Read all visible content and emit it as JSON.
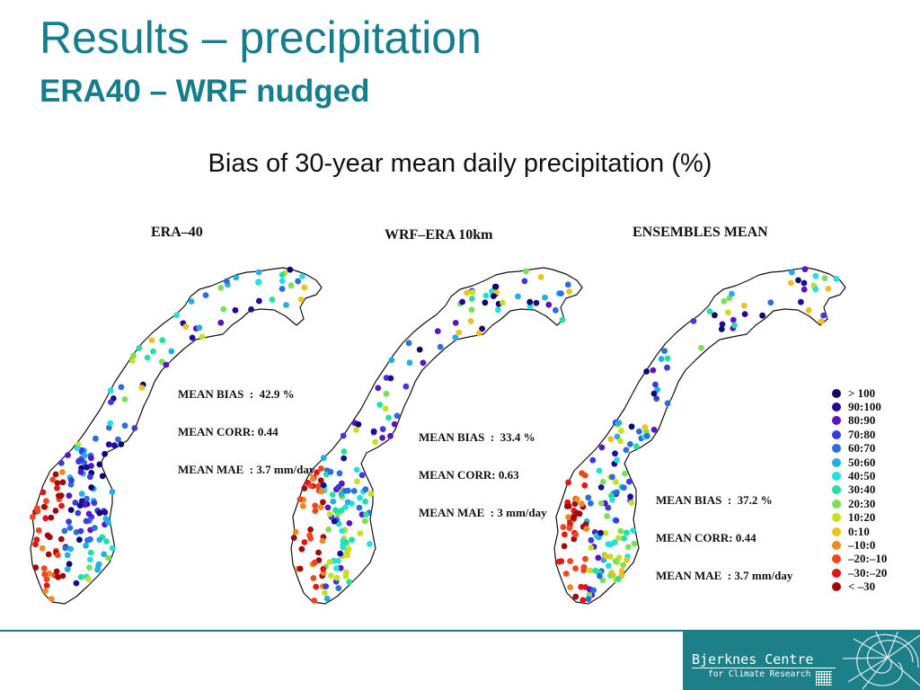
{
  "slide": {
    "title": "Results – precipitation",
    "subtitle": "ERA40 – WRF nudged",
    "heading": "Bias of 30-year mean daily precipitation (%)"
  },
  "panels": [
    {
      "title": "ERA–40",
      "stats": [
        "MEAN BIAS  :  42.9 %",
        "MEAN CORR: 0.44",
        "MEAN MAE  : 3.7 mm/day"
      ]
    },
    {
      "title": "WRF–ERA 10km",
      "stats": [
        "MEAN BIAS  :  33.4 %",
        "MEAN CORR: 0.63",
        "MEAN MAE  : 3 mm/day"
      ]
    },
    {
      "title": "ENSEMBLES MEAN",
      "stats": [
        "MEAN BIAS  :  37.2 %",
        "MEAN CORR: 0.44",
        "MEAN MAE  : 3.7 mm/day"
      ]
    }
  ],
  "legend": [
    {
      "label": "> 100",
      "color": "#0a0a6e"
    },
    {
      "label": "90:100",
      "color": "#1f0a9a"
    },
    {
      "label": "80:90",
      "color": "#5a14c8"
    },
    {
      "label": "70:80",
      "color": "#3a3ae0"
    },
    {
      "label": "60:70",
      "color": "#2a6ee0"
    },
    {
      "label": "50:60",
      "color": "#22aee8"
    },
    {
      "label": "40:50",
      "color": "#22e0e0"
    },
    {
      "label": "30:40",
      "color": "#22e0a0"
    },
    {
      "label": "20:30",
      "color": "#7ae05a"
    },
    {
      "label": "10:20",
      "color": "#c8e022"
    },
    {
      "label": "0:10",
      "color": "#f0c01e"
    },
    {
      "label": "–10:0",
      "color": "#f08a1e"
    },
    {
      "label": "–20:–10",
      "color": "#f0461e"
    },
    {
      "label": "–30:–20",
      "color": "#e61414"
    },
    {
      "label": "< –30",
      "color": "#a00a0a"
    }
  ],
  "footer": {
    "logo_name": "Bjerknes Centre",
    "logo_sub": "for Climate Research",
    "accent_color": "#157d8c"
  }
}
